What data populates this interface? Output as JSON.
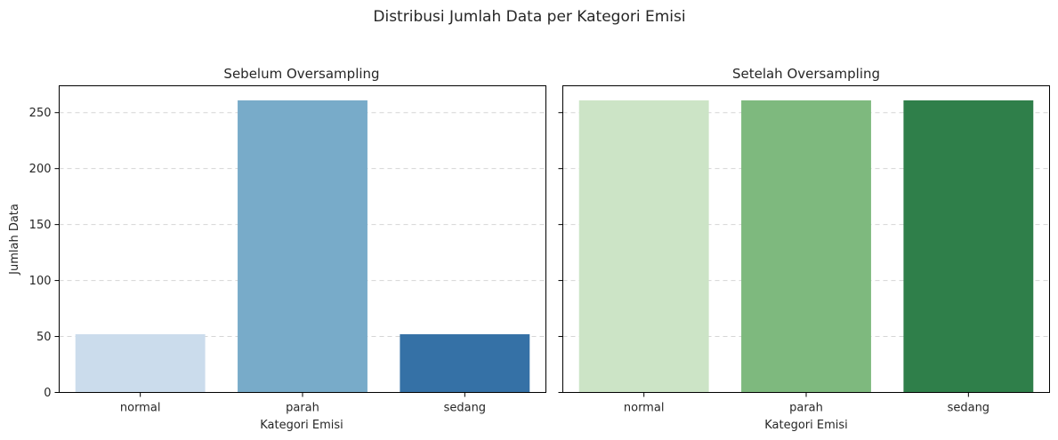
{
  "figure": {
    "suptitle": "Distribusi Jumlah Data per Kategori Emisi"
  },
  "chart_data": [
    {
      "type": "bar",
      "title": "Sebelum Oversampling",
      "xlabel": "Kategori Emisi",
      "ylabel": "Jumlah Data",
      "categories": [
        "normal",
        "parah",
        "sedang"
      ],
      "values": [
        52,
        261,
        52
      ],
      "colors": [
        "#cbdcec",
        "#78abc9",
        "#3571a6"
      ],
      "ylim": [
        0,
        274
      ],
      "yticks": [
        0,
        50,
        100,
        150,
        200,
        250
      ],
      "grid": "y-dashed"
    },
    {
      "type": "bar",
      "title": "Setelah Oversampling",
      "xlabel": "Kategori Emisi",
      "ylabel": "",
      "categories": [
        "normal",
        "parah",
        "sedang"
      ],
      "values": [
        261,
        261,
        261
      ],
      "colors": [
        "#cce4c6",
        "#7eb97e",
        "#2f7f4a"
      ],
      "ylim": [
        0,
        274
      ],
      "yticks": [
        0,
        50,
        100,
        150,
        200,
        250
      ],
      "grid": "y-dashed"
    }
  ]
}
